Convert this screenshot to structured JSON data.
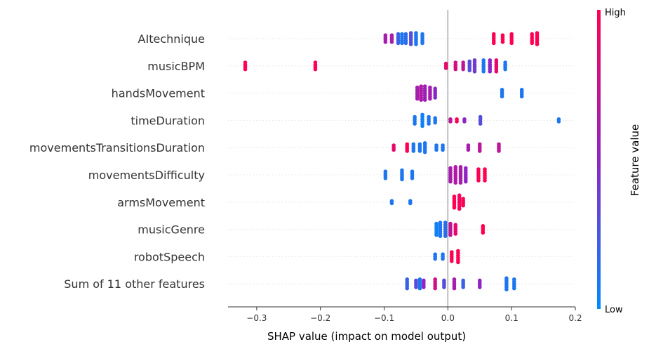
{
  "chart_data": {
    "type": "scatter",
    "subtype": "shap-beeswarm",
    "xlabel": "SHAP value (impact on model output)",
    "xlim": [
      -0.345,
      0.2
    ],
    "xticks": [
      -0.3,
      -0.2,
      -0.1,
      0.0,
      0.1,
      0.2
    ],
    "xtick_labels": [
      "−0.3",
      "−0.2",
      "−0.1",
      "0.0",
      "0.1",
      "0.2"
    ],
    "grid": false,
    "colorbar": {
      "label": "Feature value",
      "high_label": "High",
      "low_label": "Low",
      "high_color": "#ff0052",
      "mid_color": "#8f24c4",
      "low_color": "#008bfb"
    },
    "features": [
      {
        "name": "AItechnique",
        "clusters": [
          {
            "x": -0.098,
            "n": 4,
            "v": 0.6
          },
          {
            "x": -0.088,
            "n": 4,
            "v": 0.6
          },
          {
            "x": -0.078,
            "n": 5,
            "v": 0.2
          },
          {
            "x": -0.072,
            "n": 5,
            "v": 0.1
          },
          {
            "x": -0.066,
            "n": 5,
            "v": 0.15
          },
          {
            "x": -0.058,
            "n": 6,
            "v": 0.3
          },
          {
            "x": -0.05,
            "n": 6,
            "v": 0.1
          },
          {
            "x": -0.04,
            "n": 5,
            "v": 0.1
          },
          {
            "x": 0.072,
            "n": 5,
            "v": 1.0
          },
          {
            "x": 0.086,
            "n": 4,
            "v": 1.0
          },
          {
            "x": 0.1,
            "n": 5,
            "v": 1.0
          },
          {
            "x": 0.132,
            "n": 5,
            "v": 1.0
          },
          {
            "x": 0.14,
            "n": 6,
            "v": 1.0
          }
        ]
      },
      {
        "name": "musicBPM",
        "clusters": [
          {
            "x": -0.318,
            "n": 4,
            "v": 1.0
          },
          {
            "x": -0.208,
            "n": 4,
            "v": 1.0
          },
          {
            "x": -0.003,
            "n": 3,
            "v": 0.9
          },
          {
            "x": 0.012,
            "n": 4,
            "v": 0.8
          },
          {
            "x": 0.024,
            "n": 4,
            "v": 0.7
          },
          {
            "x": 0.034,
            "n": 5,
            "v": 0.3
          },
          {
            "x": 0.042,
            "n": 6,
            "v": 0.4
          },
          {
            "x": 0.056,
            "n": 6,
            "v": 0.1
          },
          {
            "x": 0.066,
            "n": 6,
            "v": 0.5
          },
          {
            "x": 0.076,
            "n": 6,
            "v": 0.9
          },
          {
            "x": 0.09,
            "n": 4,
            "v": 0.1
          }
        ]
      },
      {
        "name": "handsMovement",
        "clusters": [
          {
            "x": -0.048,
            "n": 6,
            "v": 0.6
          },
          {
            "x": -0.042,
            "n": 7,
            "v": 0.65
          },
          {
            "x": -0.036,
            "n": 7,
            "v": 0.55
          },
          {
            "x": -0.028,
            "n": 6,
            "v": 0.6
          },
          {
            "x": -0.02,
            "n": 5,
            "v": 0.5
          },
          {
            "x": 0.085,
            "n": 4,
            "v": 0.1
          },
          {
            "x": 0.116,
            "n": 4,
            "v": 0.1
          }
        ]
      },
      {
        "name": "timeDuration",
        "clusters": [
          {
            "x": -0.052,
            "n": 4,
            "v": 0.1
          },
          {
            "x": -0.04,
            "n": 6,
            "v": 0.05
          },
          {
            "x": -0.03,
            "n": 4,
            "v": 0.1
          },
          {
            "x": -0.02,
            "n": 3,
            "v": 0.1
          },
          {
            "x": 0.004,
            "n": 2,
            "v": 0.7
          },
          {
            "x": 0.014,
            "n": 2,
            "v": 1.0
          },
          {
            "x": 0.026,
            "n": 2,
            "v": 0.5
          },
          {
            "x": 0.051,
            "n": 4,
            "v": 0.3
          },
          {
            "x": 0.174,
            "n": 2,
            "v": 0.1
          }
        ]
      },
      {
        "name": "movementsTransitionsDuration",
        "clusters": [
          {
            "x": -0.085,
            "n": 3,
            "v": 0.9
          },
          {
            "x": -0.064,
            "n": 4,
            "v": 1.0
          },
          {
            "x": -0.054,
            "n": 4,
            "v": 0.1
          },
          {
            "x": -0.044,
            "n": 4,
            "v": 0.1
          },
          {
            "x": -0.036,
            "n": 5,
            "v": 0.1
          },
          {
            "x": -0.018,
            "n": 3,
            "v": 0.1
          },
          {
            "x": -0.008,
            "n": 3,
            "v": 0.1
          },
          {
            "x": 0.032,
            "n": 3,
            "v": 0.6
          },
          {
            "x": 0.05,
            "n": 4,
            "v": 0.7
          },
          {
            "x": 0.08,
            "n": 4,
            "v": 0.7
          }
        ]
      },
      {
        "name": "movementsDifficulty",
        "clusters": [
          {
            "x": -0.098,
            "n": 4,
            "v": 0.1
          },
          {
            "x": -0.072,
            "n": 5,
            "v": 0.1
          },
          {
            "x": -0.056,
            "n": 4,
            "v": 0.1
          },
          {
            "x": 0.004,
            "n": 7,
            "v": 0.6
          },
          {
            "x": 0.012,
            "n": 8,
            "v": 0.65
          },
          {
            "x": 0.02,
            "n": 8,
            "v": 0.6
          },
          {
            "x": 0.028,
            "n": 7,
            "v": 0.5
          },
          {
            "x": 0.048,
            "n": 6,
            "v": 1.0
          },
          {
            "x": 0.058,
            "n": 6,
            "v": 1.0
          }
        ]
      },
      {
        "name": "armsMovement",
        "clusters": [
          {
            "x": -0.088,
            "n": 2,
            "v": 0.1
          },
          {
            "x": -0.059,
            "n": 2,
            "v": 0.1
          },
          {
            "x": 0.01,
            "n": 6,
            "v": 1.0
          },
          {
            "x": 0.018,
            "n": 7,
            "v": 0.95
          },
          {
            "x": 0.024,
            "n": 4,
            "v": 1.0
          }
        ]
      },
      {
        "name": "musicGenre",
        "clusters": [
          {
            "x": -0.018,
            "n": 6,
            "v": 0.05
          },
          {
            "x": -0.012,
            "n": 7,
            "v": 0.1
          },
          {
            "x": -0.004,
            "n": 7,
            "v": 0.15
          },
          {
            "x": 0.004,
            "n": 6,
            "v": 0.7
          },
          {
            "x": 0.012,
            "n": 5,
            "v": 0.9
          },
          {
            "x": 0.055,
            "n": 4,
            "v": 1.0
          }
        ]
      },
      {
        "name": "robotSpeech",
        "clusters": [
          {
            "x": -0.02,
            "n": 3,
            "v": 0.1
          },
          {
            "x": -0.008,
            "n": 3,
            "v": 0.1
          },
          {
            "x": 0.006,
            "n": 5,
            "v": 1.0
          },
          {
            "x": 0.016,
            "n": 6,
            "v": 1.0
          }
        ]
      },
      {
        "name": "Sum of 11 other features",
        "clusters": [
          {
            "x": -0.064,
            "n": 5,
            "v": 0.2
          },
          {
            "x": -0.05,
            "n": 4,
            "v": 0.3
          },
          {
            "x": -0.044,
            "n": 5,
            "v": 0.1
          },
          {
            "x": -0.038,
            "n": 4,
            "v": 0.5
          },
          {
            "x": -0.02,
            "n": 5,
            "v": 0.8
          },
          {
            "x": -0.006,
            "n": 4,
            "v": 0.3
          },
          {
            "x": 0.01,
            "n": 5,
            "v": 0.6
          },
          {
            "x": 0.024,
            "n": 4,
            "v": 0.2
          },
          {
            "x": 0.05,
            "n": 4,
            "v": 0.5
          },
          {
            "x": 0.092,
            "n": 6,
            "v": 0.1
          },
          {
            "x": 0.104,
            "n": 5,
            "v": 0.1
          }
        ]
      }
    ]
  }
}
